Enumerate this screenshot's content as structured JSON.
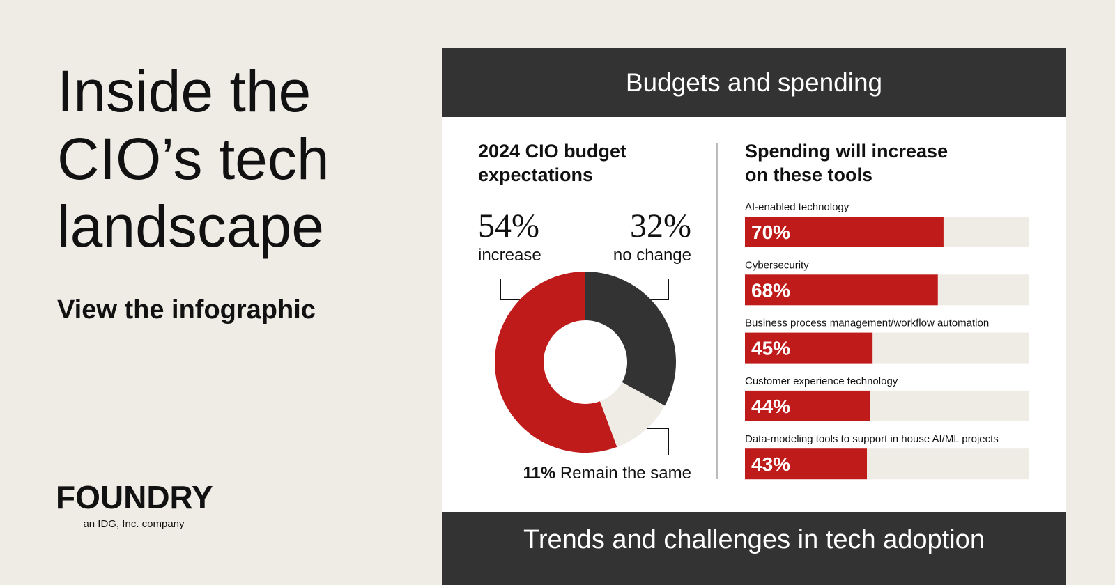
{
  "header": {
    "title_lines": [
      "Inside the",
      "CIO’s tech",
      "landscape"
    ],
    "cta": "View the infographic"
  },
  "brand": {
    "logo": "FOUNDRY",
    "tagline": "an IDG, Inc. company"
  },
  "panel": {
    "heading": "Budgets and spending",
    "footer": "Trends and challenges in tech adoption"
  },
  "chart_data": [
    {
      "type": "pie",
      "title": "2024 CIO budget expectations",
      "categories": [
        "increase",
        "no change",
        "Remain the same"
      ],
      "values": [
        54,
        32,
        11
      ],
      "value_labels": [
        "54%",
        "32%",
        "11%"
      ],
      "colors": [
        "#c01b1b",
        "#333333",
        "#efebe5"
      ]
    },
    {
      "type": "bar",
      "title": "Spending will increase on these tools",
      "categories": [
        "AI-enabled technology",
        "Cybersecurity",
        "Business process management/workflow automation",
        "Customer experience technology",
        "Data-modeling tools to support in house AI/ML projects"
      ],
      "values": [
        70,
        68,
        45,
        44,
        43
      ],
      "value_labels": [
        "70%",
        "68%",
        "45%",
        "44%",
        "43%"
      ],
      "xlim": [
        0,
        100
      ],
      "color": "#c01b1b",
      "track_color": "#efebe5"
    }
  ]
}
